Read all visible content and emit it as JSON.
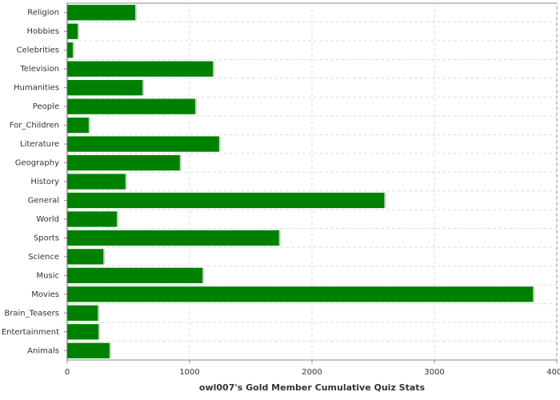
{
  "chart_data": {
    "type": "barh",
    "xlabel": "owl007's Gold Member Cumulative Quiz Stats",
    "categories": [
      "Religion",
      "Hobbies",
      "Celebrities",
      "Television",
      "Humanities",
      "People",
      "For_Children",
      "Literature",
      "Geography",
      "History",
      "General",
      "World",
      "Sports",
      "Science",
      "Music",
      "Movies",
      "Brain_Teasers",
      "Entertainment",
      "Animals"
    ],
    "values": [
      555,
      85,
      45,
      1190,
      615,
      1045,
      175,
      1240,
      920,
      475,
      2590,
      405,
      1730,
      295,
      1105,
      3805,
      250,
      255,
      345
    ],
    "color": "#008000",
    "xlim": [
      0,
      4000
    ],
    "xticks": [
      0,
      1000,
      2000,
      3000,
      4000
    ],
    "grid": true
  }
}
